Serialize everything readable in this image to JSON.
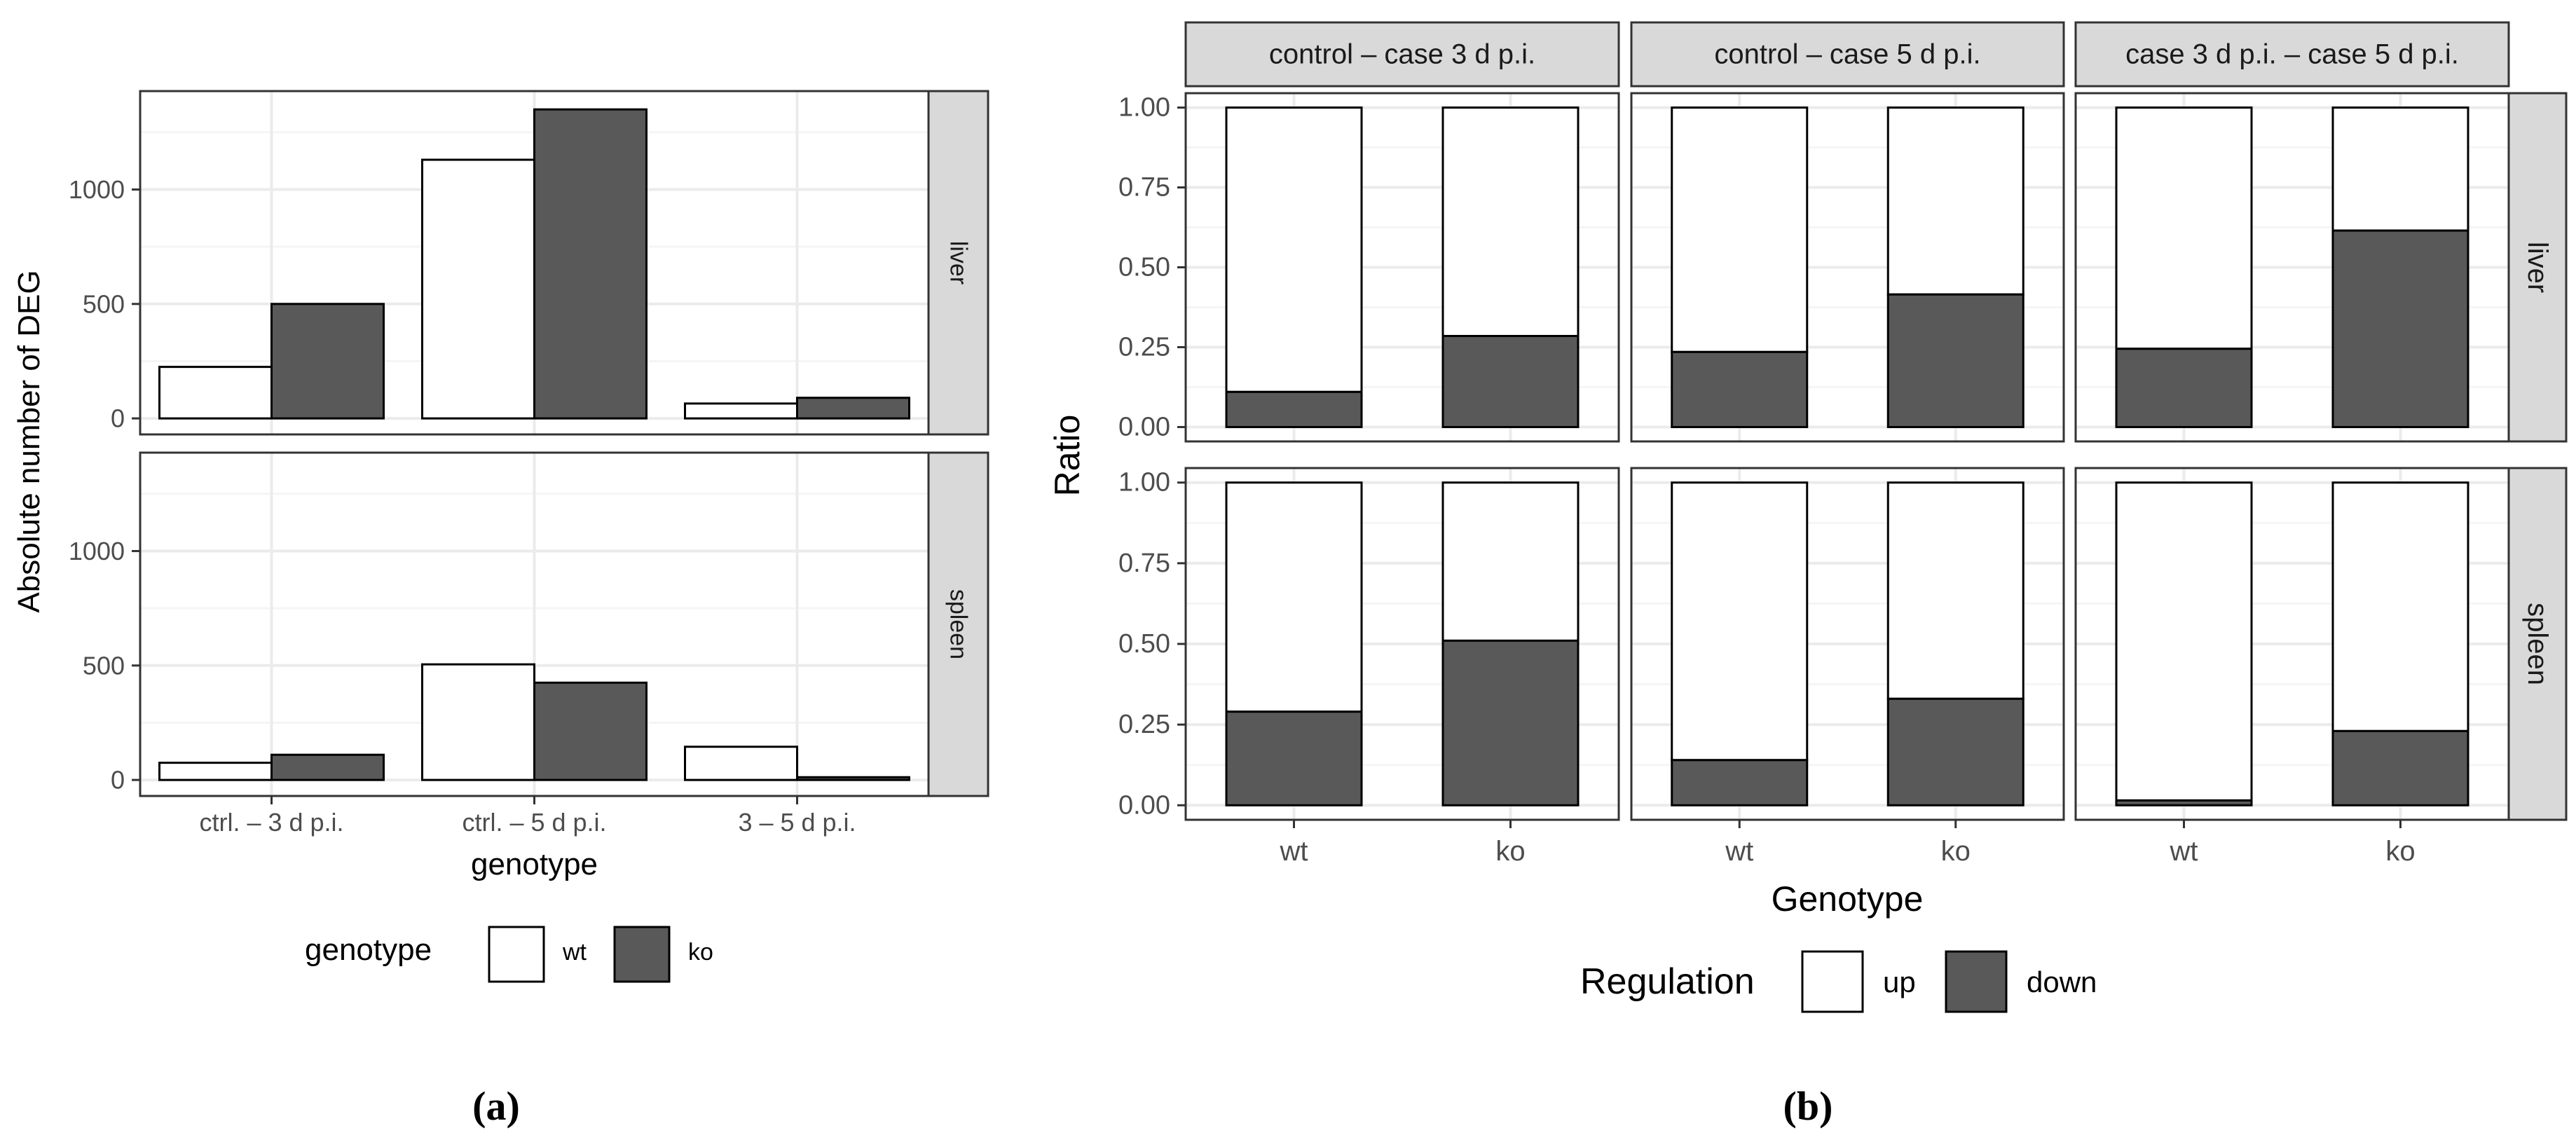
{
  "chart_data": [
    {
      "type": "bar",
      "panel_label": "(a)",
      "ylabel": "Absolute number of DEG",
      "xlabel": "genotype",
      "categories": [
        "ctrl. – 3 d p.i.",
        "ctrl. – 5 d p.i.",
        "3 – 5 d p.i."
      ],
      "yticks": [
        0,
        500,
        1000
      ],
      "ytick_labels": [
        "0",
        "500",
        "1000"
      ],
      "ylim": [
        -70,
        1430
      ],
      "grid": true,
      "facets": [
        {
          "strip": "liver",
          "series": [
            {
              "name": "wt",
              "values": [
                225,
                1130,
                65
              ]
            },
            {
              "name": "ko",
              "values": [
                500,
                1350,
                90
              ]
            }
          ]
        },
        {
          "strip": "spleen",
          "series": [
            {
              "name": "wt",
              "values": [
                75,
                505,
                145
              ]
            },
            {
              "name": "ko",
              "values": [
                110,
                425,
                12
              ]
            }
          ]
        }
      ],
      "legend": {
        "title": "genotype",
        "position": "bottom",
        "items": [
          {
            "label": "wt",
            "color": "#ffffff"
          },
          {
            "label": "ko",
            "color": "#595959"
          }
        ]
      }
    },
    {
      "type": "stacked_bar",
      "panel_label": "(b)",
      "ylabel": "Ratio",
      "xlabel": "Genotype",
      "categories": [
        "wt",
        "ko"
      ],
      "yticks": [
        0,
        0.25,
        0.5,
        0.75,
        1.0
      ],
      "ytick_labels": [
        "0.00",
        "0.25",
        "0.50",
        "0.75",
        "1.00"
      ],
      "ylim": [
        -0.045,
        1.045
      ],
      "grid": true,
      "column_strips": [
        "control – case 3 d p.i.",
        "control – case 5 d p.i.",
        "case 3 d p.i. – case 5 d p.i."
      ],
      "row_strips": [
        "liver",
        "spleen"
      ],
      "down_values": [
        [
          [
            0.11,
            0.285
          ],
          [
            0.235,
            0.415
          ],
          [
            0.245,
            0.615
          ]
        ],
        [
          [
            0.29,
            0.51
          ],
          [
            0.14,
            0.33
          ],
          [
            0.015,
            0.23
          ]
        ]
      ],
      "legend": {
        "title": "Regulation",
        "position": "bottom",
        "items": [
          {
            "label": "up",
            "color": "#ffffff"
          },
          {
            "label": "down",
            "color": "#595959"
          }
        ]
      }
    }
  ],
  "colors": {
    "fill_dark": "#595959",
    "fill_light": "#ffffff",
    "strip_bg": "#d9d9d9",
    "grid_major": "#ebebeb",
    "grid_minor": "#f5f5f5",
    "axis_text": "#4d4d4d"
  }
}
